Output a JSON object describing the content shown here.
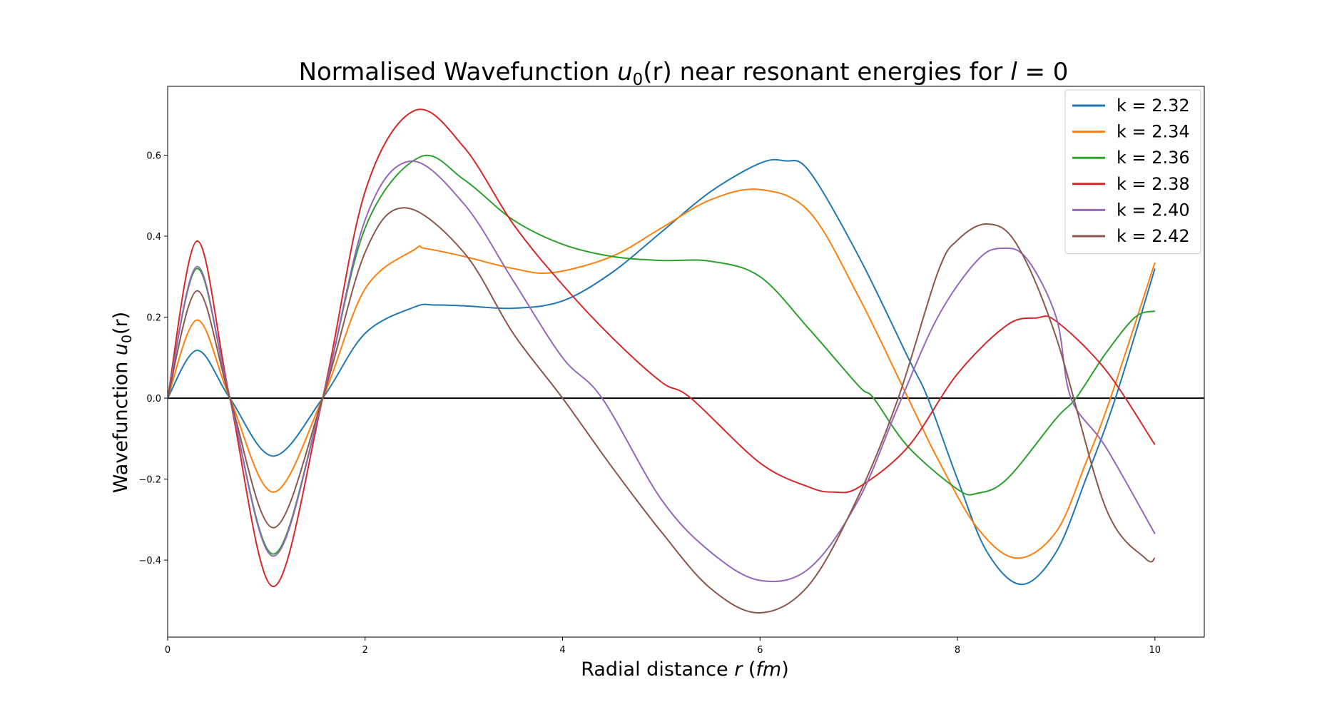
{
  "chart_data": {
    "type": "line",
    "title": {
      "prefix": "Normalised Wavefunction ",
      "var": "u",
      "sub": "0",
      "mid": "(r)",
      "suffix": " near resonant energies for ",
      "lvar": "l",
      "leq": " = 0"
    },
    "xlabel": {
      "text": "Radial distance ",
      "var": "r",
      "unit": "fm"
    },
    "ylabel": {
      "text": "Wavefunction ",
      "var": "u",
      "sub": "0",
      "arg": "(r)"
    },
    "xlim": [
      0,
      10.5
    ],
    "ylim": [
      -0.59,
      0.77
    ],
    "xticks": [
      0,
      2,
      4,
      6,
      8,
      10
    ],
    "xtick_labels": [
      "0",
      "2",
      "4",
      "6",
      "8",
      "10"
    ],
    "yticks": [
      -0.4,
      -0.2,
      0.0,
      0.2,
      0.4,
      0.6
    ],
    "ytick_labels": [
      "−0.4",
      "−0.2",
      "0.0",
      "0.2",
      "0.4",
      "0.6"
    ],
    "reference_line": {
      "y": 0,
      "color": "#000000"
    },
    "legend_position": "top-right",
    "series": [
      {
        "name": "k = 2.32",
        "color": "#1f77b4",
        "x": [
          0,
          0.3,
          0.63,
          1.07,
          1.57,
          2.0,
          2.5,
          2.7,
          3.0,
          3.5,
          4.0,
          4.5,
          5.0,
          5.5,
          6.0,
          6.25,
          6.5,
          7.0,
          7.5,
          7.7,
          8.0,
          8.3,
          8.65,
          9.0,
          9.3,
          9.6,
          10.0
        ],
        "y": [
          0,
          0.118,
          0,
          -0.143,
          0,
          0.16,
          0.225,
          0.23,
          0.228,
          0.222,
          0.24,
          0.31,
          0.41,
          0.51,
          0.58,
          0.586,
          0.56,
          0.35,
          0.1,
          0,
          -0.2,
          -0.38,
          -0.46,
          -0.38,
          -0.2,
          0,
          0.32
        ]
      },
      {
        "name": "k = 2.34",
        "color": "#ff7f0e",
        "x": [
          0,
          0.3,
          0.63,
          1.07,
          1.57,
          2.0,
          2.5,
          2.6,
          3.0,
          3.5,
          3.9,
          4.5,
          5.0,
          5.5,
          6.0,
          6.5,
          7.0,
          7.5,
          7.8,
          8.2,
          8.6,
          9.0,
          9.3,
          9.55,
          10.0
        ],
        "y": [
          0,
          0.193,
          0,
          -0.232,
          0,
          0.27,
          0.367,
          0.37,
          0.35,
          0.32,
          0.31,
          0.35,
          0.42,
          0.49,
          0.515,
          0.46,
          0.25,
          0,
          -0.15,
          -0.32,
          -0.395,
          -0.33,
          -0.16,
          0,
          0.335
        ]
      },
      {
        "name": "k = 2.36",
        "color": "#2ca02c",
        "x": [
          0,
          0.3,
          0.63,
          1.07,
          1.57,
          2.0,
          2.55,
          3.0,
          3.5,
          4.0,
          4.5,
          5.0,
          5.5,
          6.0,
          6.5,
          7.0,
          7.15,
          7.5,
          8.0,
          8.2,
          8.5,
          9.0,
          9.2,
          9.5,
          9.8,
          10.0
        ],
        "y": [
          0,
          0.32,
          0,
          -0.385,
          0,
          0.42,
          0.595,
          0.54,
          0.44,
          0.38,
          0.35,
          0.34,
          0.338,
          0.3,
          0.17,
          0.03,
          0,
          -0.12,
          -0.225,
          -0.235,
          -0.2,
          -0.05,
          0,
          0.11,
          0.2,
          0.215
        ]
      },
      {
        "name": "k = 2.38",
        "color": "#d62728",
        "x": [
          0,
          0.3,
          0.63,
          1.07,
          1.57,
          2.0,
          2.5,
          3.0,
          3.5,
          4.0,
          4.5,
          5.0,
          5.3,
          6.0,
          6.5,
          6.75,
          7.0,
          7.5,
          8.0,
          8.5,
          8.8,
          9.0,
          9.5,
          10.0
        ],
        "y": [
          0,
          0.388,
          0,
          -0.465,
          0,
          0.51,
          0.71,
          0.62,
          0.43,
          0.28,
          0.15,
          0.04,
          0,
          -0.16,
          -0.22,
          -0.232,
          -0.22,
          -0.12,
          0.06,
          0.18,
          0.198,
          0.19,
          0.07,
          -0.115
        ]
      },
      {
        "name": "k = 2.40",
        "color": "#9467bd",
        "x": [
          0,
          0.3,
          0.63,
          1.07,
          1.57,
          2.0,
          2.45,
          3.0,
          3.5,
          4.0,
          4.4,
          5.0,
          5.5,
          6.0,
          6.5,
          7.0,
          7.4,
          7.8,
          8.2,
          8.45,
          8.7,
          9.0,
          9.15,
          9.5,
          10.0
        ],
        "y": [
          0,
          0.325,
          0,
          -0.39,
          0,
          0.44,
          0.585,
          0.48,
          0.29,
          0.1,
          0,
          -0.25,
          -0.38,
          -0.45,
          -0.42,
          -0.25,
          -0.02,
          0.2,
          0.34,
          0.37,
          0.345,
          0.2,
          0,
          -0.12,
          -0.335
        ]
      },
      {
        "name": "k = 2.42",
        "color": "#8c564b",
        "x": [
          0,
          0.3,
          0.63,
          1.07,
          1.57,
          2.0,
          2.4,
          3.0,
          3.5,
          4.0,
          4.5,
          5.0,
          5.5,
          6.0,
          6.5,
          7.0,
          7.4,
          7.8,
          8.0,
          8.3,
          8.6,
          9.0,
          9.5,
          9.9,
          10.0
        ],
        "y": [
          0,
          0.265,
          0,
          -0.32,
          0,
          0.36,
          0.47,
          0.36,
          0.16,
          0.0,
          -0.17,
          -0.33,
          -0.47,
          -0.53,
          -0.46,
          -0.24,
          0.0,
          0.31,
          0.39,
          0.43,
          0.38,
          0.15,
          -0.27,
          -0.395,
          -0.395
        ]
      }
    ]
  }
}
